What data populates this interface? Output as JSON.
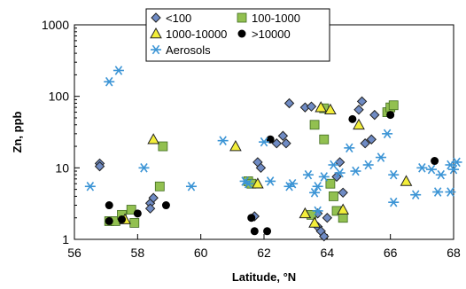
{
  "chart_data": {
    "type": "scatter",
    "xlabel": "Latitude, °N",
    "ylabel": "Zn, ppb",
    "xlim": [
      56,
      68
    ],
    "ylim": [
      1,
      1000
    ],
    "yscale": "log",
    "x_ticks": [
      "56",
      "58",
      "60",
      "62",
      "64",
      "66",
      "68"
    ],
    "y_ticks": [
      "1",
      "10",
      "100",
      "1000"
    ],
    "grid": false,
    "legend": "top-center, boxed, two columns",
    "series": [
      {
        "name": "<100",
        "marker": "diamond",
        "color": "#6f8bc4",
        "points": [
          [
            56.8,
            11.5
          ],
          [
            56.8,
            10.5
          ],
          [
            58.4,
            3.2
          ],
          [
            58.4,
            2.7
          ],
          [
            58.5,
            3.8
          ],
          [
            61.7,
            2.1
          ],
          [
            61.8,
            12
          ],
          [
            61.9,
            10
          ],
          [
            62.6,
            28
          ],
          [
            62.7,
            22
          ],
          [
            62.4,
            22
          ],
          [
            62.8,
            80
          ],
          [
            63.3,
            70
          ],
          [
            63.5,
            72
          ],
          [
            63.7,
            2.3
          ],
          [
            63.7,
            1.5
          ],
          [
            63.8,
            1.3
          ],
          [
            63.9,
            1.1
          ],
          [
            64.0,
            2.0
          ],
          [
            64.3,
            7.5
          ],
          [
            64.4,
            12
          ],
          [
            64.5,
            4.5
          ],
          [
            65.0,
            65
          ],
          [
            65.1,
            85
          ],
          [
            65.2,
            22
          ],
          [
            65.4,
            25
          ],
          [
            65.5,
            55
          ]
        ]
      },
      {
        "name": "100-1000",
        "marker": "square",
        "color": "#92c050",
        "points": [
          [
            57.1,
            1.8
          ],
          [
            57.3,
            1.8
          ],
          [
            57.5,
            2.2
          ],
          [
            57.8,
            2.6
          ],
          [
            57.9,
            1.7
          ],
          [
            58.7,
            5.5
          ],
          [
            58.8,
            20
          ],
          [
            61.5,
            6.5
          ],
          [
            61.6,
            6.0
          ],
          [
            63.5,
            2.2
          ],
          [
            63.6,
            40
          ],
          [
            63.9,
            68
          ],
          [
            63.9,
            25
          ],
          [
            64.1,
            6.0
          ],
          [
            64.2,
            4.0
          ],
          [
            64.3,
            2.5
          ],
          [
            64.5,
            2.0
          ],
          [
            65.9,
            60
          ],
          [
            66.0,
            70
          ],
          [
            66.1,
            75
          ]
        ]
      },
      {
        "name": "1000-10000",
        "marker": "triangle",
        "color": "#f3ee3a",
        "points": [
          [
            57.6,
            1.9
          ],
          [
            58.5,
            25
          ],
          [
            61.1,
            20
          ],
          [
            61.8,
            6.0
          ],
          [
            63.3,
            2.3
          ],
          [
            63.6,
            1.7
          ],
          [
            63.8,
            70
          ],
          [
            64.1,
            65
          ],
          [
            64.5,
            2.6
          ],
          [
            65.0,
            40
          ],
          [
            66.5,
            6.5
          ]
        ]
      },
      {
        "name": ">10000",
        "marker": "circle",
        "color": "#000000",
        "points": [
          [
            57.1,
            3.0
          ],
          [
            57.1,
            1.8
          ],
          [
            57.5,
            1.9
          ],
          [
            58.0,
            2.3
          ],
          [
            58.9,
            3.0
          ],
          [
            61.6,
            2.0
          ],
          [
            61.7,
            1.3
          ],
          [
            62.2,
            25
          ],
          [
            62.1,
            1.3
          ],
          [
            64.8,
            48
          ],
          [
            66.0,
            55
          ],
          [
            67.4,
            12.5
          ]
        ]
      },
      {
        "name": "Aerosols",
        "marker": "asterisk",
        "color": "#3b94d5",
        "points": [
          [
            56.5,
            5.5
          ],
          [
            57.1,
            160
          ],
          [
            57.4,
            230
          ],
          [
            58.2,
            10
          ],
          [
            59.7,
            5.5
          ],
          [
            60.7,
            24
          ],
          [
            61.4,
            6.5
          ],
          [
            61.5,
            6.0
          ],
          [
            62.0,
            23
          ],
          [
            62.2,
            6.5
          ],
          [
            62.9,
            6.0
          ],
          [
            62.8,
            5.5
          ],
          [
            63.4,
            8
          ],
          [
            63.6,
            4.5
          ],
          [
            63.7,
            5.5
          ],
          [
            63.7,
            2.5
          ],
          [
            63.9,
            7.5
          ],
          [
            64.2,
            11
          ],
          [
            64.4,
            8.5
          ],
          [
            64.7,
            19
          ],
          [
            64.9,
            9
          ],
          [
            65.3,
            11
          ],
          [
            65.7,
            14
          ],
          [
            65.9,
            30
          ],
          [
            66.1,
            8
          ],
          [
            66.1,
            3.3
          ],
          [
            66.8,
            4.2
          ],
          [
            67.0,
            10
          ],
          [
            67.3,
            9.5
          ],
          [
            67.5,
            4.6
          ],
          [
            67.6,
            8
          ],
          [
            67.9,
            11
          ],
          [
            67.9,
            4.6
          ],
          [
            68.0,
            9.5
          ],
          [
            68.1,
            12
          ]
        ]
      }
    ]
  }
}
